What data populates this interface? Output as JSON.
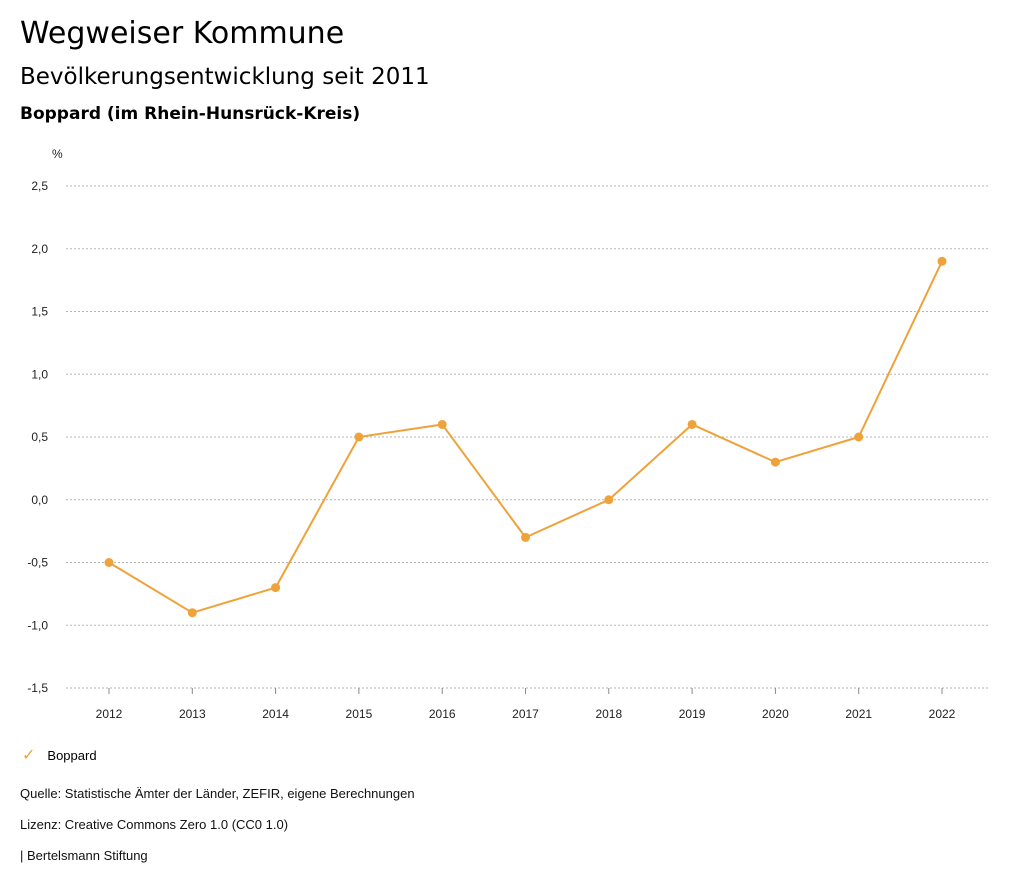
{
  "header": {
    "title": "Wegweiser Kommune",
    "subtitle": "Bevölkerungsentwicklung seit 2011",
    "region": "Boppard (im Rhein-Hunsrück-Kreis)"
  },
  "legend": {
    "marker_icon": "check-icon",
    "label": "Boppard"
  },
  "footer": {
    "source": "Quelle: Statistische Ämter der Länder, ZEFIR, eigene Berechnungen",
    "license": "Lizenz: Creative Commons Zero 1.0 (CC0 1.0)",
    "publisher": "| Bertelsmann Stiftung"
  },
  "colors": {
    "series": "#f0a23a",
    "grid": "#b5b5b5"
  },
  "chart_data": {
    "type": "line",
    "unit": "%",
    "x": [
      "2012",
      "2013",
      "2014",
      "2015",
      "2016",
      "2017",
      "2018",
      "2019",
      "2020",
      "2021",
      "2022"
    ],
    "series": [
      {
        "name": "Boppard",
        "values": [
          -0.5,
          -0.9,
          -0.7,
          0.5,
          0.6,
          -0.3,
          0.0,
          0.6,
          0.3,
          0.5,
          1.9
        ]
      }
    ],
    "y_ticks": [
      2.5,
      2.0,
      1.5,
      1.0,
      0.5,
      0.0,
      -0.5,
      -1.0,
      -1.5
    ],
    "y_tick_labels": [
      "2,5",
      "2,0",
      "1,5",
      "1,0",
      "0,5",
      "0,0",
      "-0,5",
      "-1,0",
      "-1,5"
    ],
    "ylim": [
      -1.5,
      2.5
    ],
    "grid": true,
    "legend_position": "bottom-left"
  }
}
